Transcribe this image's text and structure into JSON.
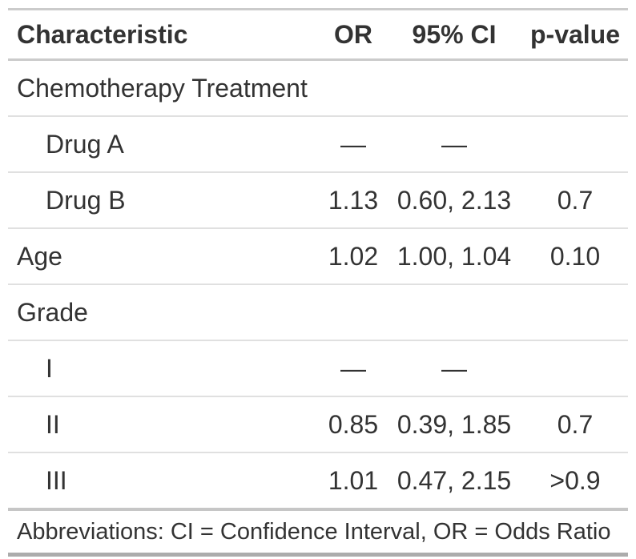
{
  "colors": {
    "text": "#333333",
    "background": "#FFFFFF",
    "row_divider": "#E0E0E0",
    "section_rule": "#CBCBCB",
    "pre_footer_rule": "#C6C6C6",
    "bottom_rule": "#ACACAC"
  },
  "chart_data": {
    "type": "table",
    "columns": [
      "Characteristic",
      "OR",
      "95% CI",
      "p-value"
    ],
    "rows": [
      [
        "Chemotherapy Treatment",
        "",
        "",
        ""
      ],
      [
        "Drug A",
        "—",
        "—",
        ""
      ],
      [
        "Drug B",
        "1.13",
        "0.60, 2.13",
        "0.7"
      ],
      [
        "Age",
        "1.02",
        "1.00, 1.04",
        "0.10"
      ],
      [
        "Grade",
        "",
        "",
        ""
      ],
      [
        "I",
        "—",
        "—",
        ""
      ],
      [
        "II",
        "0.85",
        "0.39, 1.85",
        "0.7"
      ],
      [
        "III",
        "1.01",
        "0.47, 2.15",
        ">0.9"
      ]
    ],
    "row_types": [
      "group",
      "level",
      "level",
      "variable",
      "group",
      "level",
      "level",
      "level"
    ],
    "footnote": "Abbreviations: CI = Confidence Interval, OR = Odds Ratio",
    "column_alignment": [
      "left",
      "center",
      "center",
      "center"
    ],
    "grid": "horizontal-rules-only",
    "title": ""
  }
}
